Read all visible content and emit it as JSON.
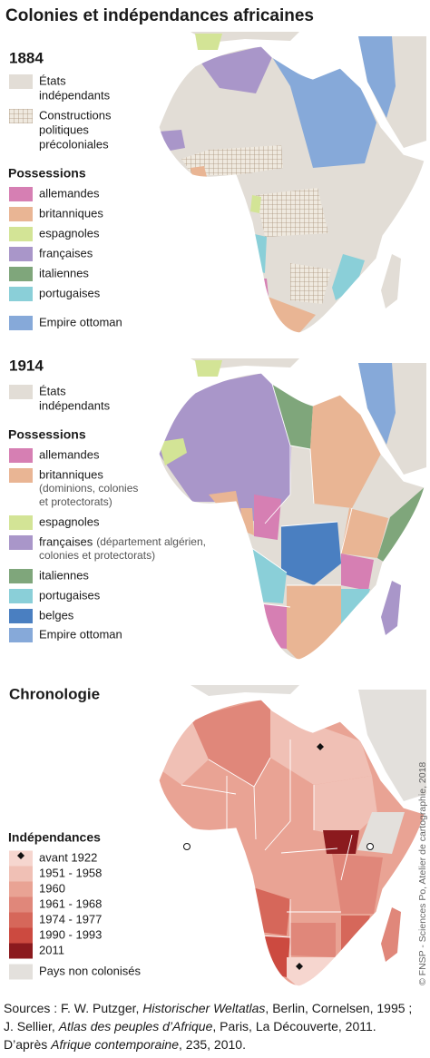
{
  "title": "Colonies et indépendances africaines",
  "maps": [
    {
      "heading": "1884",
      "groups": [
        {
          "items": [
            {
              "label": [
                "États",
                "indépendants"
              ],
              "color": "#e2ddd6"
            },
            {
              "label": [
                "Constructions",
                "politiques",
                "précoloniales"
              ],
              "pattern": "grid"
            }
          ]
        },
        {
          "heading": "Possessions",
          "items": [
            {
              "label": [
                "allemandes"
              ],
              "color": "#d67fb3"
            },
            {
              "label": [
                "britanniques"
              ],
              "color": "#e9b594"
            },
            {
              "label": [
                "espagnoles"
              ],
              "color": "#d3e496"
            },
            {
              "label": [
                "françaises"
              ],
              "color": "#a996c9"
            },
            {
              "label": [
                "italiennes"
              ],
              "color": "#7fa67b"
            },
            {
              "label": [
                "portugaises"
              ],
              "color": "#8acfd8"
            }
          ]
        },
        {
          "items": [
            {
              "label": [
                "Empire ottoman"
              ],
              "color": "#86a9d9"
            }
          ]
        }
      ]
    },
    {
      "heading": "1914",
      "groups": [
        {
          "items": [
            {
              "label": [
                "États",
                "indépendants"
              ],
              "color": "#e2ddd6"
            }
          ]
        },
        {
          "heading": "Possessions",
          "items": [
            {
              "label": [
                "allemandes"
              ],
              "color": "#d67fb3"
            },
            {
              "label": [
                "britanniques"
              ],
              "note": [
                "(dominions, colonies",
                "et protectorats)"
              ],
              "color": "#e9b594"
            },
            {
              "label": [
                "espagnoles"
              ],
              "color": "#d3e496"
            },
            {
              "label": [
                "françaises"
              ],
              "note": [
                "(département algérien,",
                "colonies et protectorats)"
              ],
              "note_inline": true,
              "color": "#a996c9"
            },
            {
              "label": [
                "italiennes"
              ],
              "color": "#7fa67b"
            },
            {
              "label": [
                "portugaises"
              ],
              "color": "#8acfd8"
            },
            {
              "label": [
                "belges"
              ],
              "color": "#4a7fc1"
            }
          ]
        },
        {
          "items": [
            {
              "label": [
                "Empire ottoman"
              ],
              "color": "#86a9d9"
            }
          ]
        }
      ]
    },
    {
      "heading": "Chronologie",
      "groups": [
        {
          "heading": "Indépendances",
          "items": [
            {
              "label": [
                "avant 1922"
              ],
              "color": "#f6d6cf"
            },
            {
              "label": [
                "1951 - 1958"
              ],
              "color": "#f0c0b5"
            },
            {
              "label": [
                "1960"
              ],
              "color": "#e9a394"
            },
            {
              "label": [
                "1961 - 1968"
              ],
              "color": "#e0877a"
            },
            {
              "label": [
                "1974 - 1977"
              ],
              "color": "#d6675a"
            },
            {
              "label": [
                "1990 - 1993"
              ],
              "color": "#cc4a40"
            },
            {
              "label": [
                "2011"
              ],
              "color": "#8b1a1e"
            }
          ]
        },
        {
          "items": [
            {
              "label": [
                "Pays non colonisés"
              ],
              "color": "#e3e0dc"
            }
          ]
        }
      ]
    }
  ],
  "credit": "© FNSP - Sciences Po, Atelier de cartographie, 2018",
  "sources": [
    [
      "Sources : F. W. Putzger, ",
      "Historischer Weltatlas",
      ", Berlin, Cornelsen, 1995 ;"
    ],
    [
      "J. Sellier, ",
      "Atlas des peuples d’Afrique",
      ", Paris, La Découverte, 2011."
    ],
    [
      "D’après ",
      "Afrique contemporaine",
      ", 235, 2010."
    ]
  ]
}
